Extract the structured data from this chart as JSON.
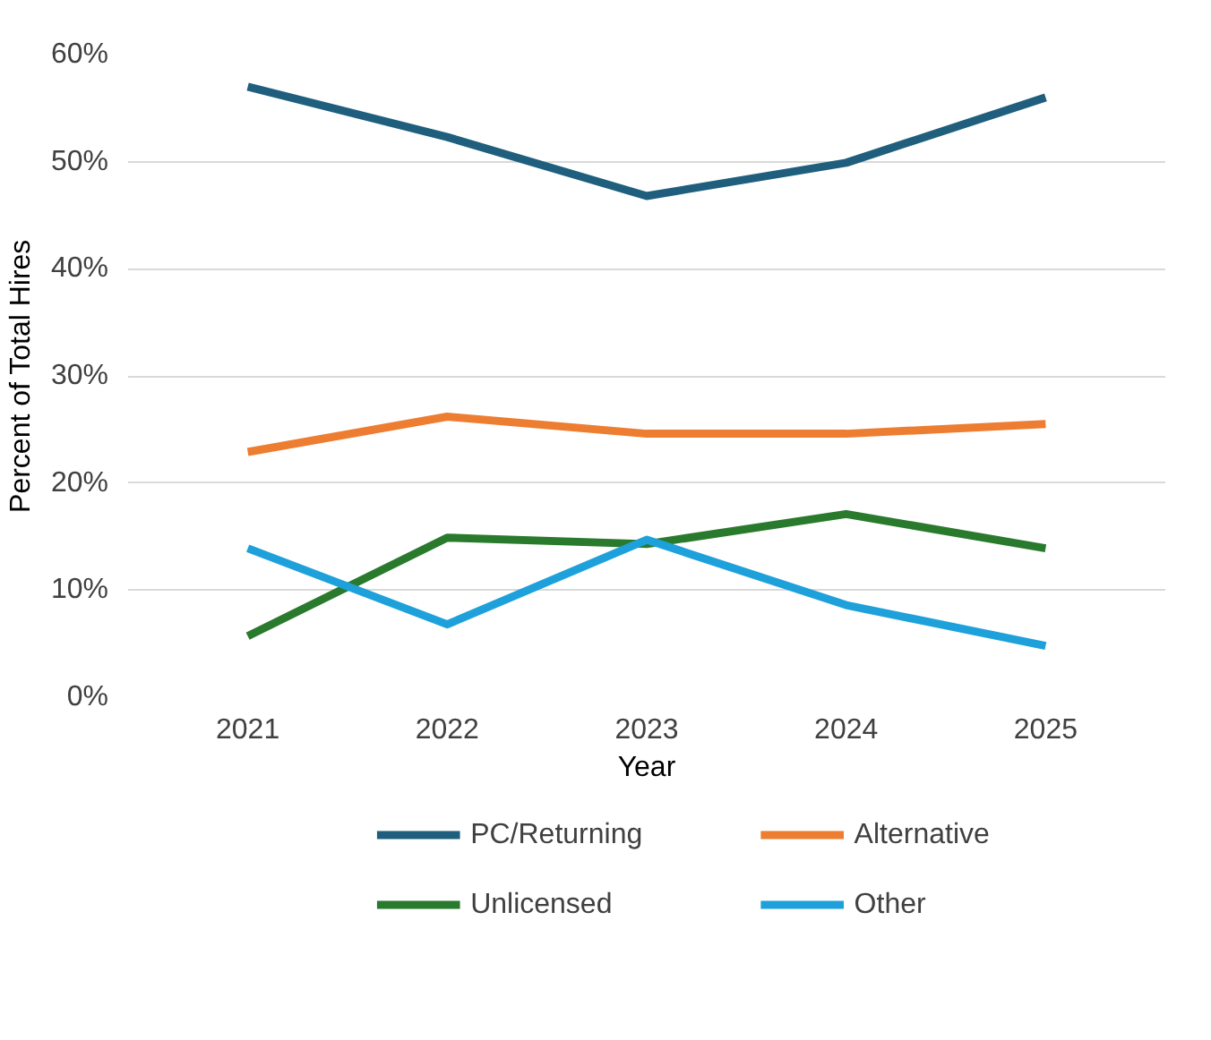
{
  "chart_data": {
    "type": "line",
    "xlabel": "Year",
    "ylabel": "Percent of Total Hires",
    "categories": [
      "2021",
      "2022",
      "2023",
      "2024",
      "2025"
    ],
    "series": [
      {
        "name": "PC/Returning",
        "color": "#1f5f7d",
        "values": [
          57,
          52.3,
          46.8,
          49.9,
          56
        ]
      },
      {
        "name": "Alternative",
        "color": "#ed7d31",
        "values": [
          22.9,
          26.2,
          24.6,
          24.6,
          25.5
        ]
      },
      {
        "name": "Unlicensed",
        "color": "#2a7a2e",
        "values": [
          5.7,
          14.9,
          14.3,
          17.1,
          13.9
        ]
      },
      {
        "name": "Other",
        "color": "#1ea1db",
        "values": [
          13.9,
          6.8,
          14.7,
          8.6,
          4.8
        ]
      }
    ],
    "ylim": [
      0,
      60
    ],
    "yticks": [
      {
        "value": 0,
        "label": "0%"
      },
      {
        "value": 10,
        "label": "10%"
      },
      {
        "value": 20,
        "label": "20%"
      },
      {
        "value": 30,
        "label": "30%"
      },
      {
        "value": 40,
        "label": "40%"
      },
      {
        "value": 50,
        "label": "50%"
      },
      {
        "value": 60,
        "label": "60%"
      }
    ],
    "grid": "y",
    "legend": "bottom",
    "marker": "none",
    "line_style": "solid"
  }
}
